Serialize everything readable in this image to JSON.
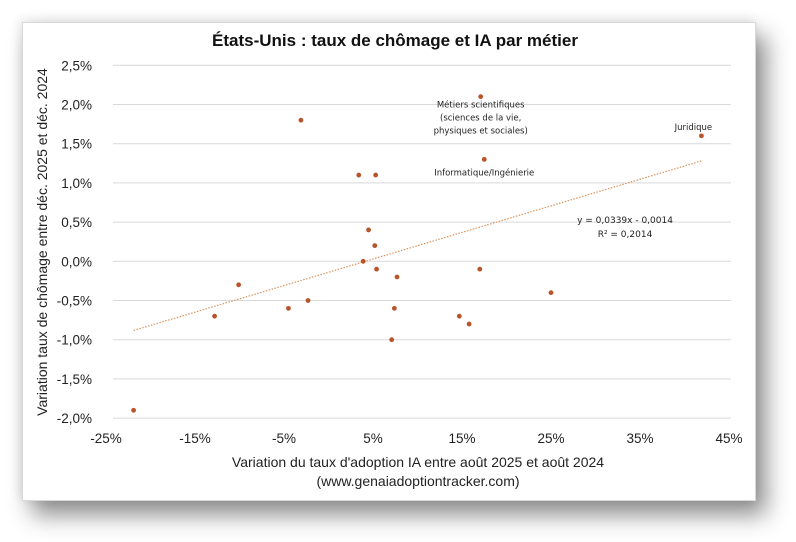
{
  "chart_data": {
    "type": "scatter",
    "title": "États-Unis : taux de chômage et IA par métier",
    "xlabel": "Variation du taux d'adoption IA entre août 2025 et août 2024",
    "xlabel_source": "(www.genaiadoptiontracker.com)",
    "ylabel": "Variation taux de chômage entre déc. 2025 et déc. 2024",
    "xlim": [
      -25,
      45
    ],
    "ylim": [
      -2.0,
      2.5
    ],
    "x_ticks": [
      "-25%",
      "-15%",
      "-5%",
      "5%",
      "15%",
      "25%",
      "35%",
      "45%"
    ],
    "x_tick_values": [
      -25,
      -15,
      -5,
      5,
      15,
      25,
      35,
      45
    ],
    "y_ticks": [
      "2,5%",
      "2,0%",
      "1,5%",
      "1,0%",
      "0,5%",
      "0,0%",
      "-0,5%",
      "-1,0%",
      "-1,5%",
      "-2,0%"
    ],
    "y_tick_values": [
      2.5,
      2.0,
      1.5,
      1.0,
      0.5,
      0.0,
      -0.5,
      -1.0,
      -1.5,
      -2.0
    ],
    "grid": "horizontal",
    "legend": "none",
    "marker_color": "#B9542A",
    "trendline_color": "#D9935E",
    "points": [
      {
        "x": -21.9,
        "y": -1.9
      },
      {
        "x": -12.8,
        "y": -0.7
      },
      {
        "x": -10.1,
        "y": -0.3
      },
      {
        "x": -4.5,
        "y": -0.6
      },
      {
        "x": -2.3,
        "y": -0.5
      },
      {
        "x": -3.1,
        "y": 1.8
      },
      {
        "x": 3.4,
        "y": 1.1
      },
      {
        "x": 5.3,
        "y": 1.1
      },
      {
        "x": 4.5,
        "y": 0.4
      },
      {
        "x": 5.2,
        "y": 0.2
      },
      {
        "x": 3.9,
        "y": 0.0
      },
      {
        "x": 5.4,
        "y": -0.1
      },
      {
        "x": 7.7,
        "y": -0.2
      },
      {
        "x": 7.4,
        "y": -0.6
      },
      {
        "x": 7.1,
        "y": -1.0
      },
      {
        "x": 17.0,
        "y": -0.1
      },
      {
        "x": 25.0,
        "y": -0.4
      },
      {
        "x": 14.7,
        "y": -0.7
      },
      {
        "x": 15.8,
        "y": -0.8
      },
      {
        "x": 17.1,
        "y": 2.1,
        "label": [
          "Métiers scientifiques",
          "(sciences de la vie,",
          "physiques et sociales)"
        ]
      },
      {
        "x": 17.5,
        "y": 1.3,
        "label": [
          "Informatique/Ingénierie"
        ]
      },
      {
        "x": 41.9,
        "y": 1.6,
        "label": [
          "Juridique"
        ]
      }
    ],
    "trendline": {
      "type": "linear",
      "slope": 0.0339,
      "intercept": -0.0014,
      "x_range": [
        -21.9,
        41.9
      ],
      "equation_label": "y = 0,0339x - 0,0014",
      "r2_label": "R² = 0,2014"
    }
  }
}
